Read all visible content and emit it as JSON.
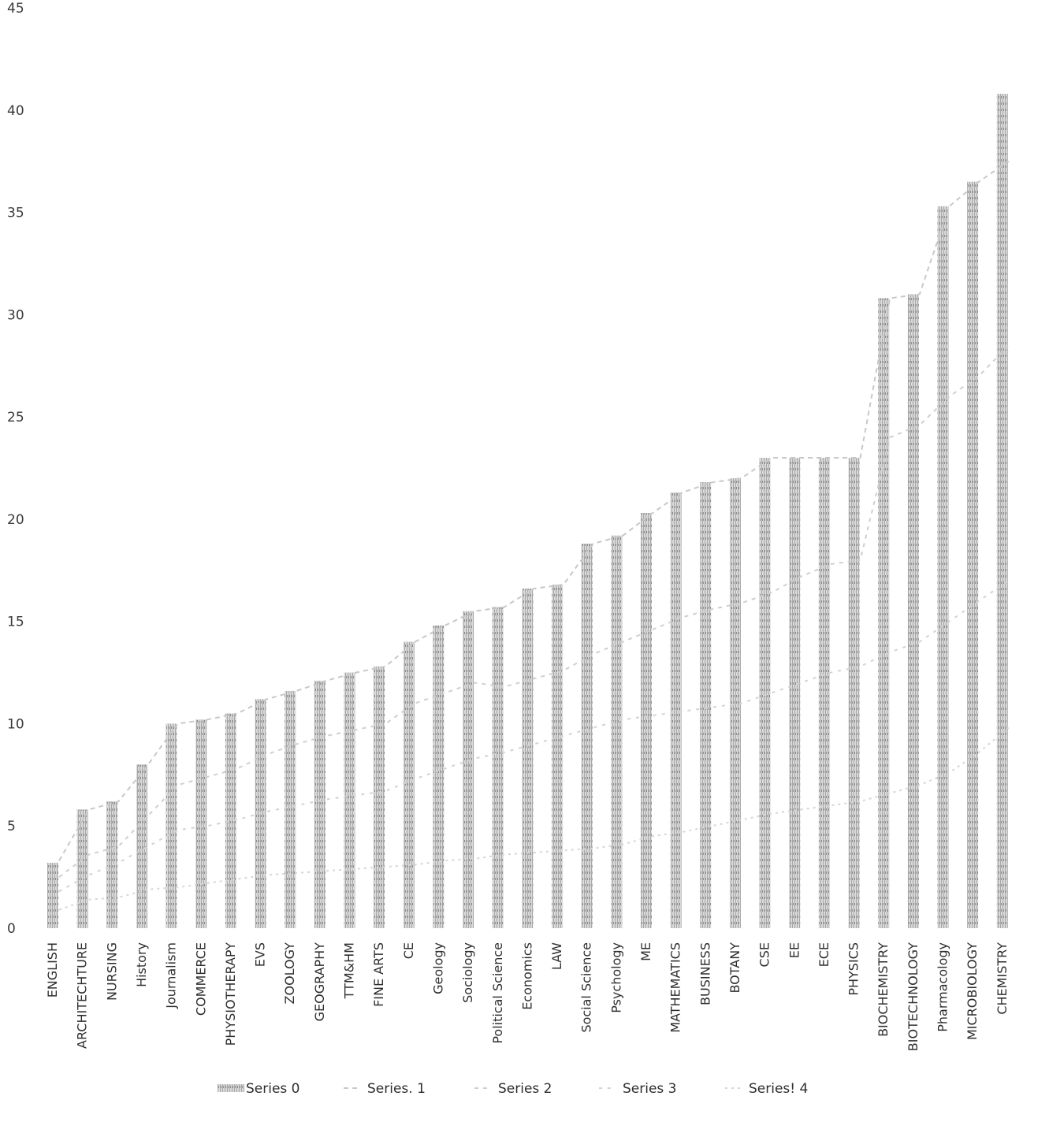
{
  "chart_data": {
    "type": "bar",
    "title": "",
    "xlabel": "",
    "ylabel": "",
    "ylim": [
      0,
      45
    ],
    "yticks": [
      0,
      5,
      10,
      15,
      20,
      25,
      30,
      35,
      40,
      45
    ],
    "grid": false,
    "legend_position": "bottom",
    "categories": [
      "ENGLISH",
      "ARCHITECHTURE",
      "NURSING",
      "History",
      "Journalism",
      "COMMERCE",
      "PHYSIOTHERAPY",
      "EVS",
      "ZOOLOGY",
      "GEOGRAPHY",
      "TTM&HM",
      "FINE ARTS",
      "CE",
      "Geology",
      "Sociology",
      "Political Science",
      "Economics",
      "LAW",
      "Social Science",
      "Psychology",
      "ME",
      "MATHEMATICS",
      "BUSINESS",
      "BOTANY",
      "CSE",
      "EE",
      "ECE",
      "PHYSICS",
      "BIOCHEMISTRY",
      "BIOTECHNOLOGY",
      "Pharmacology",
      "MICROBIOLOGY",
      "CHEMISTRY"
    ],
    "series": [
      {
        "name": "Series 0",
        "kind": "bar",
        "color": "#b5b5b5",
        "values": [
          3.2,
          5.8,
          6.2,
          8.0,
          10.0,
          10.2,
          10.5,
          11.2,
          11.6,
          12.1,
          12.5,
          12.8,
          14.0,
          14.8,
          15.5,
          15.7,
          16.6,
          16.8,
          18.8,
          19.2,
          20.3,
          21.3,
          21.8,
          22.0,
          23.0,
          23.0,
          23.0,
          23.0,
          30.8,
          31.0,
          35.3,
          36.5,
          40.8
        ]
      },
      {
        "name": "Series 1",
        "kind": "line",
        "color": "#c8c8c8",
        "values": [
          3.3,
          5.8,
          6.2,
          8.0,
          10.0,
          10.2,
          10.5,
          11.2,
          11.6,
          12.1,
          12.5,
          12.8,
          14.0,
          14.8,
          15.5,
          15.7,
          16.6,
          16.8,
          18.8,
          19.2,
          20.3,
          21.3,
          21.8,
          22.0,
          23.0,
          23.0,
          23.0,
          23.0,
          30.8,
          31.0,
          35.3,
          36.5,
          37.5
        ]
      },
      {
        "name": "Series 2",
        "kind": "line",
        "color": "#cfcfcf",
        "values": [
          2.5,
          3.6,
          4.0,
          5.5,
          7.0,
          7.4,
          7.8,
          8.5,
          9.0,
          9.4,
          9.7,
          10.0,
          11.0,
          11.5,
          12.0,
          11.8,
          12.2,
          12.6,
          13.4,
          14.0,
          14.6,
          15.2,
          15.6,
          15.9,
          16.4,
          17.2,
          17.8,
          18.0,
          24.0,
          24.6,
          26.0,
          27.0,
          28.5
        ]
      },
      {
        "name": "Series 3",
        "kind": "line",
        "color": "#d3d3d3",
        "values": [
          1.8,
          2.6,
          3.2,
          4.0,
          4.8,
          5.0,
          5.3,
          5.7,
          6.0,
          6.3,
          6.5,
          6.7,
          7.3,
          7.8,
          8.3,
          8.6,
          9.0,
          9.4,
          9.8,
          10.2,
          10.4,
          10.6,
          10.8,
          11.0,
          11.5,
          12.0,
          12.5,
          12.8,
          13.5,
          14.0,
          15.0,
          16.0,
          17.0
        ]
      },
      {
        "name": "Series 4",
        "kind": "line",
        "color": "#d6d6d6",
        "values": [
          0.9,
          1.4,
          1.5,
          1.9,
          2.0,
          2.2,
          2.4,
          2.6,
          2.7,
          2.8,
          2.9,
          3.0,
          3.1,
          3.3,
          3.4,
          3.6,
          3.7,
          3.8,
          3.9,
          4.1,
          4.5,
          4.7,
          5.0,
          5.3,
          5.6,
          5.8,
          6.0,
          6.2,
          6.6,
          7.0,
          7.6,
          8.6,
          9.8
        ]
      }
    ],
    "legend": [
      {
        "label": "Series  0"
      },
      {
        "label": "Series.  1"
      },
      {
        "label": "Series  2"
      },
      {
        "label": "Series  3"
      },
      {
        "label": "Series!  4"
      }
    ]
  }
}
